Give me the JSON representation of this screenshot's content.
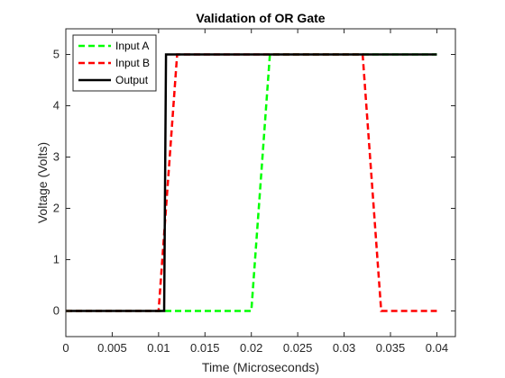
{
  "chart_data": {
    "type": "line",
    "title": "Validation of OR Gate",
    "xlabel": "Time (Microseconds)",
    "ylabel": "Voltage (Volts)",
    "xlim": [
      0,
      0.042
    ],
    "ylim": [
      -0.5,
      5.5
    ],
    "xticks": [
      0,
      0.005,
      0.01,
      0.015,
      0.02,
      0.025,
      0.03,
      0.035,
      0.04
    ],
    "xtick_labels": [
      "0",
      "0.005",
      "0.01",
      "0.015",
      "0.02",
      "0.025",
      "0.03",
      "0.035",
      "0.04"
    ],
    "yticks": [
      0,
      1,
      2,
      3,
      4,
      5
    ],
    "ytick_labels": [
      "0",
      "1",
      "2",
      "3",
      "4",
      "5"
    ],
    "grid": false,
    "legend_position": "top-left",
    "series": [
      {
        "name": "Input A",
        "color": "#00ff00",
        "style": "dashed",
        "x": [
          0,
          0.02,
          0.022,
          0.04
        ],
        "y": [
          0,
          0,
          5,
          5
        ]
      },
      {
        "name": "Input B",
        "color": "#ff0000",
        "style": "dashed",
        "x": [
          0,
          0.01,
          0.012,
          0.032,
          0.034,
          0.04
        ],
        "y": [
          0,
          0,
          5,
          5,
          0,
          0
        ]
      },
      {
        "name": "Output",
        "color": "#000000",
        "style": "solid",
        "x": [
          0,
          0.0106,
          0.0108,
          0.04
        ],
        "y": [
          0,
          0,
          5,
          5
        ]
      }
    ]
  }
}
